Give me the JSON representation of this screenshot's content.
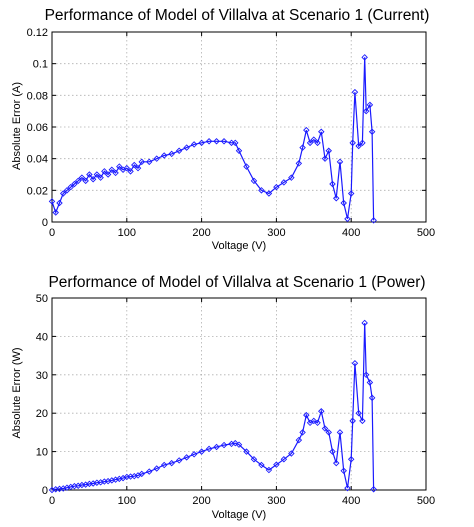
{
  "chart_data": [
    {
      "type": "line",
      "title": "Performance of Model of Villalva at Scenario 1 (Current)",
      "xlabel": "Voltage (V)",
      "ylabel": "Absolute Error (A)",
      "xlim": [
        0,
        500
      ],
      "ylim": [
        0,
        0.12
      ],
      "xticks": [
        "0",
        "100",
        "200",
        "300",
        "400",
        "500"
      ],
      "yticks": [
        "0",
        "0.02",
        "0.04",
        "0.06",
        "0.08",
        "0.1",
        "0.12"
      ],
      "xtick_values": [
        0,
        100,
        200,
        300,
        400,
        500
      ],
      "ytick_values": [
        0,
        0.02,
        0.04,
        0.06,
        0.08,
        0.1,
        0.12
      ],
      "grid": true,
      "color": "#1a1aff",
      "marker": "diamond",
      "series": [
        {
          "x": [
            0,
            5,
            10,
            15,
            20,
            25,
            30,
            35,
            40,
            45,
            50,
            55,
            60,
            65,
            70,
            75,
            80,
            85,
            90,
            95,
            100,
            105,
            110,
            115,
            120,
            130,
            140,
            150,
            160,
            170,
            180,
            190,
            200,
            210,
            220,
            230,
            240,
            245,
            250,
            260,
            270,
            280,
            290,
            300,
            310,
            320,
            330,
            335,
            340,
            345,
            350,
            355,
            360,
            365,
            370,
            375,
            380,
            385,
            390,
            395,
            400,
            402,
            405,
            410,
            415,
            418,
            420,
            425,
            428,
            430
          ],
          "y": [
            0.013,
            0.006,
            0.012,
            0.018,
            0.02,
            0.022,
            0.024,
            0.026,
            0.028,
            0.026,
            0.03,
            0.027,
            0.03,
            0.028,
            0.032,
            0.03,
            0.033,
            0.031,
            0.035,
            0.033,
            0.034,
            0.032,
            0.036,
            0.034,
            0.038,
            0.038,
            0.04,
            0.042,
            0.043,
            0.045,
            0.047,
            0.049,
            0.05,
            0.051,
            0.051,
            0.051,
            0.05,
            0.05,
            0.045,
            0.035,
            0.026,
            0.02,
            0.018,
            0.022,
            0.025,
            0.028,
            0.037,
            0.047,
            0.058,
            0.05,
            0.052,
            0.05,
            0.057,
            0.04,
            0.045,
            0.024,
            0.015,
            0.038,
            0.012,
            0.002,
            0.018,
            0.05,
            0.082,
            0.048,
            0.05,
            0.104,
            0.07,
            0.074,
            0.057,
            0.001
          ]
        }
      ]
    },
    {
      "type": "line",
      "title": "Performance of Model of Villalva at Scenario 1 (Power)",
      "xlabel": "Voltage (V)",
      "ylabel": "Absolute Error (W)",
      "xlim": [
        0,
        500
      ],
      "ylim": [
        0,
        50
      ],
      "xticks": [
        "0",
        "100",
        "200",
        "300",
        "400",
        "500"
      ],
      "yticks": [
        "0",
        "10",
        "20",
        "30",
        "40",
        "50"
      ],
      "xtick_values": [
        0,
        100,
        200,
        300,
        400,
        500
      ],
      "ytick_values": [
        0,
        10,
        20,
        30,
        40,
        50
      ],
      "grid": true,
      "color": "#1a1aff",
      "marker": "diamond",
      "series": [
        {
          "x": [
            0,
            5,
            10,
            15,
            20,
            25,
            30,
            35,
            40,
            45,
            50,
            55,
            60,
            65,
            70,
            75,
            80,
            85,
            90,
            95,
            100,
            105,
            110,
            115,
            120,
            130,
            140,
            150,
            160,
            170,
            180,
            190,
            200,
            210,
            220,
            230,
            240,
            245,
            250,
            260,
            270,
            280,
            290,
            300,
            310,
            320,
            330,
            335,
            340,
            345,
            350,
            355,
            360,
            365,
            370,
            375,
            380,
            385,
            390,
            395,
            400,
            402,
            405,
            410,
            415,
            418,
            420,
            425,
            428,
            430
          ],
          "y": [
            0.0,
            0.2,
            0.3,
            0.4,
            0.6,
            0.8,
            1.0,
            1.1,
            1.3,
            1.4,
            1.6,
            1.7,
            1.9,
            2.0,
            2.2,
            2.3,
            2.5,
            2.7,
            2.9,
            3.1,
            3.4,
            3.5,
            3.6,
            3.8,
            4.2,
            4.8,
            5.6,
            6.5,
            7.0,
            7.7,
            8.5,
            9.3,
            10.0,
            10.7,
            11.2,
            11.7,
            12.0,
            12.2,
            11.8,
            10.0,
            8.0,
            6.5,
            5.2,
            6.6,
            8.0,
            9.5,
            13.0,
            15.0,
            19.5,
            17.5,
            18.0,
            17.5,
            20.5,
            16.0,
            15.0,
            10.0,
            7.0,
            15.0,
            5.0,
            0.5,
            8.0,
            18.0,
            33.0,
            20.0,
            18.0,
            43.5,
            30.0,
            28.0,
            24.0,
            0.2
          ]
        }
      ]
    }
  ]
}
